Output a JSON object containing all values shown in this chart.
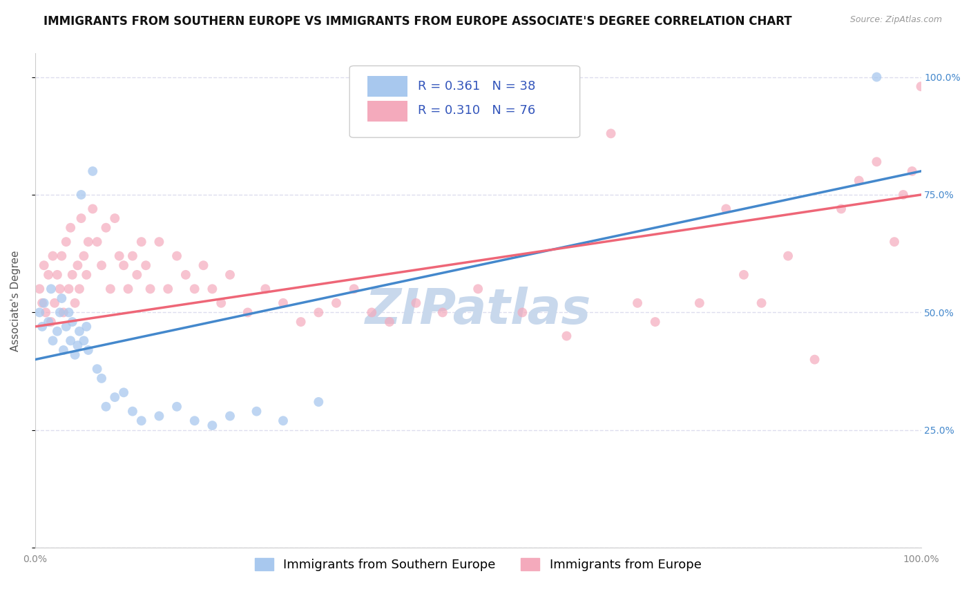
{
  "title": "IMMIGRANTS FROM SOUTHERN EUROPE VS IMMIGRANTS FROM EUROPE ASSOCIATE'S DEGREE CORRELATION CHART",
  "source": "Source: ZipAtlas.com",
  "ylabel": "Associate's Degree",
  "legend1_label": "Immigrants from Southern Europe",
  "legend2_label": "Immigrants from Europe",
  "R1": 0.361,
  "N1": 38,
  "R2": 0.31,
  "N2": 76,
  "blue_color": "#A8C8EE",
  "pink_color": "#F4AABC",
  "blue_line_color": "#4488CC",
  "pink_line_color": "#EE6677",
  "xlim": [
    0.0,
    1.0
  ],
  "ylim": [
    0.0,
    1.05
  ],
  "yticks": [
    0.0,
    0.25,
    0.5,
    0.75,
    1.0
  ],
  "right_ytick_labels": [
    "",
    "25.0%",
    "50.0%",
    "75.0%",
    "100.0%"
  ],
  "xticks": [
    0.0,
    0.25,
    0.5,
    0.75,
    1.0
  ],
  "xtick_labels": [
    "0.0%",
    "",
    "",
    "",
    "100.0%"
  ],
  "watermark": "ZIPatlas",
  "watermark_color": "#C8D8EC",
  "blue_x": [
    0.005,
    0.008,
    0.01,
    0.015,
    0.018,
    0.02,
    0.025,
    0.028,
    0.03,
    0.032,
    0.035,
    0.038,
    0.04,
    0.042,
    0.045,
    0.048,
    0.05,
    0.052,
    0.055,
    0.058,
    0.06,
    0.065,
    0.07,
    0.075,
    0.08,
    0.09,
    0.1,
    0.11,
    0.12,
    0.14,
    0.16,
    0.18,
    0.2,
    0.22,
    0.25,
    0.28,
    0.32,
    0.95
  ],
  "blue_y": [
    0.5,
    0.47,
    0.52,
    0.48,
    0.55,
    0.44,
    0.46,
    0.5,
    0.53,
    0.42,
    0.47,
    0.5,
    0.44,
    0.48,
    0.41,
    0.43,
    0.46,
    0.75,
    0.44,
    0.47,
    0.42,
    0.8,
    0.38,
    0.36,
    0.3,
    0.32,
    0.33,
    0.29,
    0.27,
    0.28,
    0.3,
    0.27,
    0.26,
    0.28,
    0.29,
    0.27,
    0.31,
    1.0
  ],
  "pink_x": [
    0.005,
    0.008,
    0.01,
    0.012,
    0.015,
    0.018,
    0.02,
    0.022,
    0.025,
    0.028,
    0.03,
    0.032,
    0.035,
    0.038,
    0.04,
    0.042,
    0.045,
    0.048,
    0.05,
    0.052,
    0.055,
    0.058,
    0.06,
    0.065,
    0.07,
    0.075,
    0.08,
    0.085,
    0.09,
    0.095,
    0.1,
    0.105,
    0.11,
    0.115,
    0.12,
    0.125,
    0.13,
    0.14,
    0.15,
    0.16,
    0.17,
    0.18,
    0.19,
    0.2,
    0.21,
    0.22,
    0.24,
    0.26,
    0.28,
    0.3,
    0.32,
    0.34,
    0.36,
    0.38,
    0.4,
    0.43,
    0.46,
    0.5,
    0.55,
    0.6,
    0.65,
    0.68,
    0.7,
    0.75,
    0.78,
    0.8,
    0.82,
    0.85,
    0.88,
    0.91,
    0.93,
    0.95,
    0.97,
    0.98,
    0.99,
    1.0
  ],
  "pink_y": [
    0.55,
    0.52,
    0.6,
    0.5,
    0.58,
    0.48,
    0.62,
    0.52,
    0.58,
    0.55,
    0.62,
    0.5,
    0.65,
    0.55,
    0.68,
    0.58,
    0.52,
    0.6,
    0.55,
    0.7,
    0.62,
    0.58,
    0.65,
    0.72,
    0.65,
    0.6,
    0.68,
    0.55,
    0.7,
    0.62,
    0.6,
    0.55,
    0.62,
    0.58,
    0.65,
    0.6,
    0.55,
    0.65,
    0.55,
    0.62,
    0.58,
    0.55,
    0.6,
    0.55,
    0.52,
    0.58,
    0.5,
    0.55,
    0.52,
    0.48,
    0.5,
    0.52,
    0.55,
    0.5,
    0.48,
    0.52,
    0.5,
    0.55,
    0.5,
    0.45,
    0.88,
    0.52,
    0.48,
    0.52,
    0.72,
    0.58,
    0.52,
    0.62,
    0.4,
    0.72,
    0.78,
    0.82,
    0.65,
    0.75,
    0.8,
    0.98
  ],
  "blue_line_y_start": 0.4,
  "blue_line_y_end": 0.8,
  "pink_line_y_start": 0.47,
  "pink_line_y_end": 0.75,
  "title_fontsize": 12,
  "axis_label_fontsize": 11,
  "tick_fontsize": 10,
  "legend_fontsize": 13,
  "watermark_fontsize": 52,
  "background_color": "#FFFFFF",
  "grid_color": "#DDDDEE",
  "marker_size": 100,
  "right_tick_color": "#4488CC"
}
